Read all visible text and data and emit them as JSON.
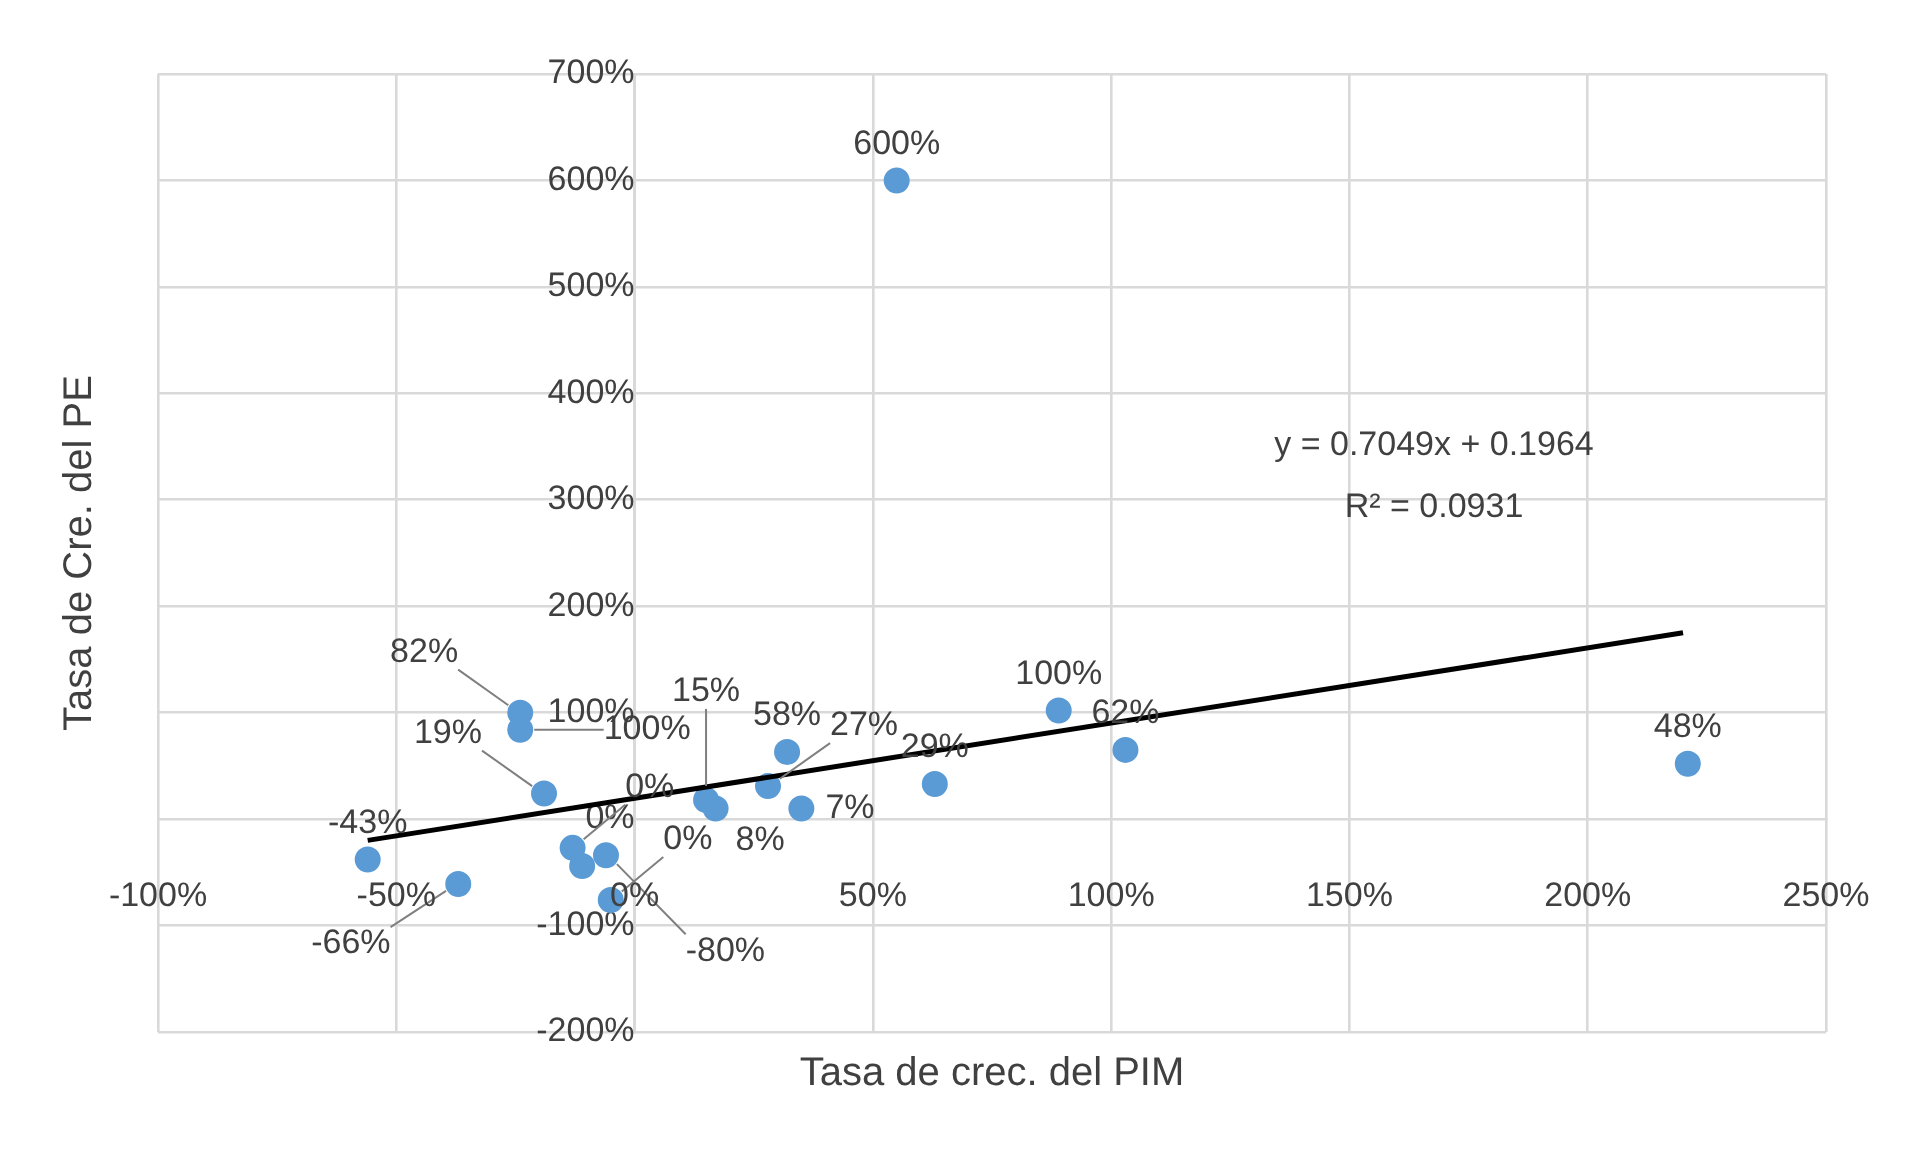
{
  "chart_data": {
    "type": "scatter",
    "xlabel": "Tasa de crec. del PIM",
    "ylabel": "Tasa de Cre. del PE",
    "xlim": [
      -100,
      250
    ],
    "xticks": [
      {
        "value": -100,
        "label": "-100%"
      },
      {
        "value": -50,
        "label": "-50%"
      },
      {
        "value": 0,
        "label": "0%"
      },
      {
        "value": 50,
        "label": "50%"
      },
      {
        "value": 100,
        "label": "100%"
      },
      {
        "value": 150,
        "label": "150%"
      },
      {
        "value": 200,
        "label": "200%"
      },
      {
        "value": 250,
        "label": "250%"
      }
    ],
    "ylim": [
      -200,
      700
    ],
    "yticks": [
      {
        "value": -200,
        "label": "-200%"
      },
      {
        "value": -100,
        "label": "-100%"
      },
      {
        "value": 0,
        "label": "0%"
      },
      {
        "value": 100,
        "label": "100%"
      },
      {
        "value": 200,
        "label": "200%"
      },
      {
        "value": 300,
        "label": "300%"
      },
      {
        "value": 400,
        "label": "400%"
      },
      {
        "value": 500,
        "label": "500%"
      },
      {
        "value": 600,
        "label": "600%"
      },
      {
        "value": 700,
        "label": "700%"
      }
    ],
    "grid": true,
    "series": [
      {
        "marker": "circle",
        "color": "#5b9bd5",
        "x": [
          -56,
          -37,
          -24,
          -24,
          -19,
          -13,
          -11,
          -6,
          -5,
          15,
          17,
          28,
          32,
          35,
          63,
          89,
          103,
          221,
          55
        ],
        "values": [
          -38,
          -61,
          100,
          84,
          24,
          -27,
          -44,
          -34,
          -76,
          18,
          10,
          31,
          63,
          10,
          33,
          102,
          65,
          52,
          600
        ]
      },
      {
        "type": "line",
        "marker": "none",
        "color": "#000000",
        "x": [
          -56,
          220
        ],
        "values": [
          -20,
          175
        ]
      }
    ],
    "annotations": [
      {
        "text": "-43%",
        "x": -56,
        "y": -38
      },
      {
        "text": "-66%",
        "x": -37,
        "y": -61
      },
      {
        "text": "82%",
        "x": -24,
        "y": 100
      },
      {
        "text": "100%",
        "x": -24,
        "y": 84
      },
      {
        "text": "19%",
        "x": -19,
        "y": 24
      },
      {
        "text": "0%",
        "x": -13,
        "y": -27
      },
      {
        "text": "-80%",
        "x": -6,
        "y": -34
      },
      {
        "text": "0%",
        "x": -5,
        "y": -76
      },
      {
        "text": "15%",
        "x": 15,
        "y": 18
      },
      {
        "text": "8%",
        "x": 17,
        "y": 10
      },
      {
        "text": "27%",
        "x": 28,
        "y": 31
      },
      {
        "text": "58%",
        "x": 32,
        "y": 63
      },
      {
        "text": "7%",
        "x": 35,
        "y": 10
      },
      {
        "text": "29%",
        "x": 63,
        "y": 33
      },
      {
        "text": "100%",
        "x": 89,
        "y": 102
      },
      {
        "text": "62%",
        "x": 103,
        "y": 65
      },
      {
        "text": "48%",
        "x": 221,
        "y": 52
      },
      {
        "text": "600%",
        "x": 55,
        "y": 600
      },
      "y = 0.7049x + 0.1964",
      "R² = 0.0931"
    ]
  }
}
